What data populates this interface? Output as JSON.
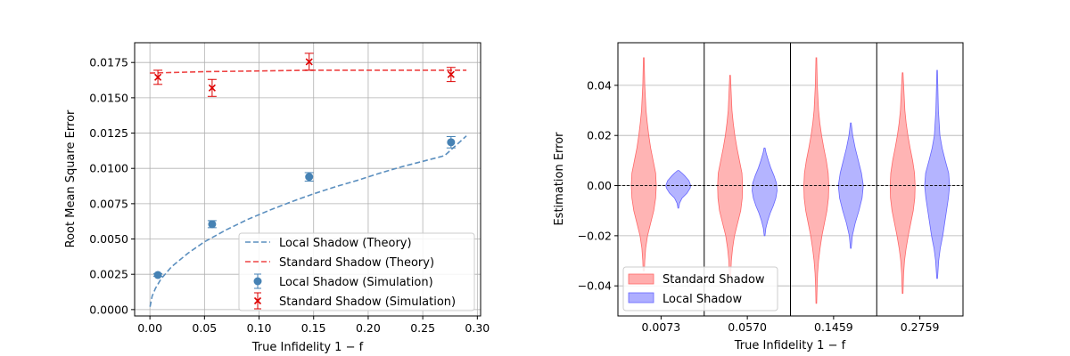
{
  "chart_data": [
    {
      "type": "line",
      "xlabel": "True Infidelity 1 − f",
      "ylabel": "Root Mean Square Error",
      "xlim": [
        -0.014,
        0.303
      ],
      "ylim": [
        -0.00045,
        0.0189
      ],
      "xticks": [
        0.0,
        0.05,
        0.1,
        0.15,
        0.2,
        0.25,
        0.3
      ],
      "xtick_labels": [
        "0.00",
        "0.05",
        "0.10",
        "0.15",
        "0.20",
        "0.25",
        "0.30"
      ],
      "yticks": [
        0.0,
        0.0025,
        0.005,
        0.0075,
        0.01,
        0.0125,
        0.015,
        0.0175
      ],
      "ytick_labels": [
        "0.0000",
        "0.0025",
        "0.0050",
        "0.0075",
        "0.0100",
        "0.0125",
        "0.0150",
        "0.0175"
      ],
      "grid": true,
      "legend_position": "lower-right",
      "series": [
        {
          "name": "Local Shadow (Theory)",
          "style": "dashed-line",
          "color": "#5b8fbf",
          "x": [
            0.0001,
            0.002,
            0.005,
            0.01,
            0.02,
            0.035,
            0.05,
            0.07,
            0.09,
            0.11,
            0.13,
            0.15,
            0.17,
            0.19,
            0.21,
            0.23,
            0.25,
            0.27,
            0.29
          ],
          "y": [
            0.0002,
            0.00095,
            0.0015,
            0.00215,
            0.00305,
            0.004,
            0.0048,
            0.00565,
            0.0064,
            0.00705,
            0.00765,
            0.0082,
            0.0087,
            0.00915,
            0.00965,
            0.0101,
            0.0105,
            0.0109,
            0.0123
          ]
        },
        {
          "name": "Standard Shadow (Theory)",
          "style": "dashed-line",
          "color": "#ee4444",
          "x": [
            0.0,
            0.05,
            0.1,
            0.15,
            0.2,
            0.25,
            0.29
          ],
          "y": [
            0.01675,
            0.01685,
            0.0169,
            0.01695,
            0.01695,
            0.01695,
            0.01695
          ]
        },
        {
          "name": "Local Shadow (Simulation)",
          "style": "marker-circle-errorbar",
          "color": "#4682b4",
          "x": [
            0.0073,
            0.057,
            0.1459,
            0.2759
          ],
          "y": [
            0.00245,
            0.00605,
            0.0094,
            0.01185
          ],
          "err": [
            0.0001,
            0.00025,
            0.0003,
            0.0004
          ]
        },
        {
          "name": "Standard Shadow (Simulation)",
          "style": "marker-x-errorbar",
          "color": "#dd0000",
          "x": [
            0.0073,
            0.057,
            0.1459,
            0.2759
          ],
          "y": [
            0.01645,
            0.0157,
            0.01755,
            0.01665
          ],
          "err": [
            0.0005,
            0.0006,
            0.0006,
            0.0005
          ]
        }
      ]
    },
    {
      "type": "violin",
      "xlabel": "True Infidelity 1 − f",
      "ylabel": "Estimation Error",
      "ylim": [
        -0.052,
        0.057
      ],
      "yticks": [
        -0.04,
        -0.02,
        0.0,
        0.02,
        0.04
      ],
      "ytick_labels": [
        "−0.04",
        "−0.02",
        "0.00",
        "0.02",
        "0.04"
      ],
      "categories": [
        "0.0073",
        "0.0570",
        "0.1459",
        "0.2759"
      ],
      "zero_line": true,
      "legend_position": "lower-left",
      "series": [
        {
          "name": "Standard Shadow",
          "color": "#ff8c8c",
          "violins": [
            {
              "min": -0.034,
              "max": 0.051,
              "profile": [
                [
                  -0.034,
                  0.05
                ],
                [
                  -0.03,
                  0.08
                ],
                [
                  -0.025,
                  0.15
                ],
                [
                  -0.02,
                  0.3
                ],
                [
                  -0.015,
                  0.55
                ],
                [
                  -0.01,
                  0.8
                ],
                [
                  -0.005,
                  0.95
                ],
                [
                  0.0,
                  1.0
                ],
                [
                  0.005,
                  0.95
                ],
                [
                  0.01,
                  0.75
                ],
                [
                  0.015,
                  0.55
                ],
                [
                  0.02,
                  0.4
                ],
                [
                  0.025,
                  0.28
                ],
                [
                  0.03,
                  0.18
                ],
                [
                  0.04,
                  0.08
                ],
                [
                  0.051,
                  0.03
                ]
              ]
            },
            {
              "min": -0.036,
              "max": 0.044,
              "profile": [
                [
                  -0.036,
                  0.05
                ],
                [
                  -0.03,
                  0.1
                ],
                [
                  -0.025,
                  0.2
                ],
                [
                  -0.02,
                  0.35
                ],
                [
                  -0.015,
                  0.6
                ],
                [
                  -0.01,
                  0.85
                ],
                [
                  -0.005,
                  0.97
                ],
                [
                  0.0,
                  1.0
                ],
                [
                  0.005,
                  0.95
                ],
                [
                  0.01,
                  0.75
                ],
                [
                  0.015,
                  0.55
                ],
                [
                  0.02,
                  0.38
                ],
                [
                  0.025,
                  0.25
                ],
                [
                  0.03,
                  0.15
                ],
                [
                  0.038,
                  0.08
                ],
                [
                  0.044,
                  0.03
                ]
              ]
            },
            {
              "min": -0.047,
              "max": 0.051,
              "profile": [
                [
                  -0.047,
                  0.03
                ],
                [
                  -0.04,
                  0.06
                ],
                [
                  -0.035,
                  0.1
                ],
                [
                  -0.03,
                  0.18
                ],
                [
                  -0.025,
                  0.3
                ],
                [
                  -0.02,
                  0.45
                ],
                [
                  -0.015,
                  0.65
                ],
                [
                  -0.01,
                  0.85
                ],
                [
                  -0.005,
                  0.97
                ],
                [
                  0.0,
                  1.0
                ],
                [
                  0.005,
                  0.95
                ],
                [
                  0.01,
                  0.8
                ],
                [
                  0.015,
                  0.6
                ],
                [
                  0.02,
                  0.42
                ],
                [
                  0.025,
                  0.28
                ],
                [
                  0.03,
                  0.18
                ],
                [
                  0.04,
                  0.08
                ],
                [
                  0.051,
                  0.03
                ]
              ]
            },
            {
              "min": -0.043,
              "max": 0.045,
              "profile": [
                [
                  -0.043,
                  0.03
                ],
                [
                  -0.035,
                  0.08
                ],
                [
                  -0.03,
                  0.15
                ],
                [
                  -0.025,
                  0.28
                ],
                [
                  -0.02,
                  0.45
                ],
                [
                  -0.015,
                  0.65
                ],
                [
                  -0.01,
                  0.85
                ],
                [
                  -0.005,
                  0.97
                ],
                [
                  0.0,
                  1.0
                ],
                [
                  0.005,
                  0.95
                ],
                [
                  0.01,
                  0.8
                ],
                [
                  0.015,
                  0.6
                ],
                [
                  0.02,
                  0.42
                ],
                [
                  0.025,
                  0.28
                ],
                [
                  0.03,
                  0.18
                ],
                [
                  0.038,
                  0.1
                ],
                [
                  0.045,
                  0.03
                ]
              ]
            }
          ]
        },
        {
          "name": "Local Shadow",
          "color": "#8c8cff",
          "violins": [
            {
              "min": -0.009,
              "max": 0.006,
              "profile": [
                [
                  -0.009,
                  0.03
                ],
                [
                  -0.007,
                  0.1
                ],
                [
                  -0.005,
                  0.3
                ],
                [
                  -0.003,
                  0.7
                ],
                [
                  -0.001,
                  0.95
                ],
                [
                  0.0,
                  1.0
                ],
                [
                  0.002,
                  0.85
                ],
                [
                  0.004,
                  0.5
                ],
                [
                  0.005,
                  0.3
                ],
                [
                  0.006,
                  0.05
                ]
              ]
            },
            {
              "min": -0.02,
              "max": 0.015,
              "profile": [
                [
                  -0.02,
                  0.03
                ],
                [
                  -0.017,
                  0.1
                ],
                [
                  -0.014,
                  0.25
                ],
                [
                  -0.011,
                  0.45
                ],
                [
                  -0.008,
                  0.7
                ],
                [
                  -0.005,
                  0.9
                ],
                [
                  -0.002,
                  1.0
                ],
                [
                  0.001,
                  0.95
                ],
                [
                  0.004,
                  0.75
                ],
                [
                  0.007,
                  0.5
                ],
                [
                  0.01,
                  0.3
                ],
                [
                  0.013,
                  0.12
                ],
                [
                  0.015,
                  0.04
                ]
              ]
            },
            {
              "min": -0.025,
              "max": 0.025,
              "profile": [
                [
                  -0.025,
                  0.03
                ],
                [
                  -0.02,
                  0.12
                ],
                [
                  -0.015,
                  0.35
                ],
                [
                  -0.01,
                  0.65
                ],
                [
                  -0.005,
                  0.9
                ],
                [
                  0.0,
                  1.0
                ],
                [
                  0.005,
                  0.85
                ],
                [
                  0.01,
                  0.6
                ],
                [
                  0.015,
                  0.35
                ],
                [
                  0.02,
                  0.15
                ],
                [
                  0.025,
                  0.03
                ]
              ]
            },
            {
              "min": -0.037,
              "max": 0.046,
              "profile": [
                [
                  -0.037,
                  0.03
                ],
                [
                  -0.03,
                  0.12
                ],
                [
                  -0.025,
                  0.25
                ],
                [
                  -0.02,
                  0.45
                ],
                [
                  -0.015,
                  0.6
                ],
                [
                  -0.01,
                  0.75
                ],
                [
                  -0.005,
                  0.9
                ],
                [
                  0.0,
                  1.0
                ],
                [
                  0.005,
                  0.92
                ],
                [
                  0.01,
                  0.65
                ],
                [
                  0.015,
                  0.4
                ],
                [
                  0.02,
                  0.22
                ],
                [
                  0.03,
                  0.1
                ],
                [
                  0.04,
                  0.05
                ],
                [
                  0.046,
                  0.02
                ]
              ]
            }
          ]
        }
      ]
    }
  ]
}
